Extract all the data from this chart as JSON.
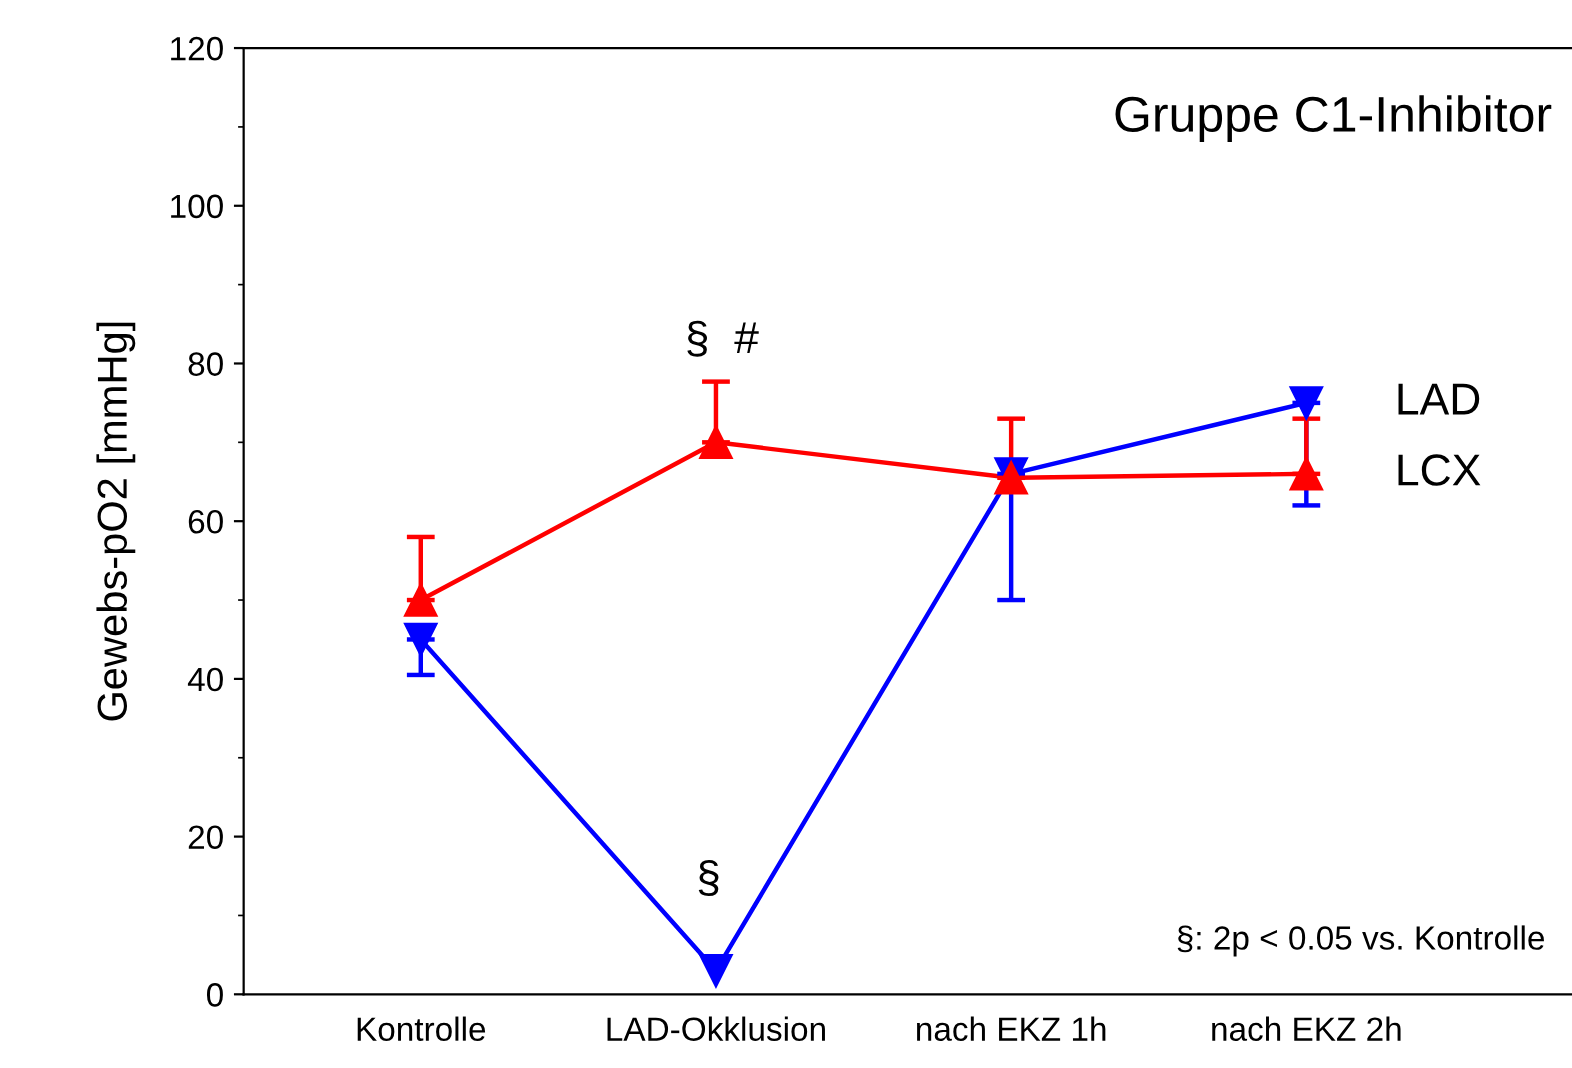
{
  "chart_data": {
    "type": "line",
    "title": "Gruppe C1-Inhibitor",
    "ylabel": "Gewebs-pO2 [mmHg]",
    "categories": [
      "Kontrolle",
      "LAD-Okklusion",
      "nach EKZ 1h",
      "nach EKZ 2h"
    ],
    "ylim": [
      0,
      120
    ],
    "yticks": [
      0,
      20,
      40,
      60,
      80,
      100,
      120
    ],
    "grid": false,
    "legend": "right",
    "series": [
      {
        "name": "LAD",
        "color": "#0000ff",
        "marker": "triangle_down",
        "values": [
          45,
          3,
          66,
          75
        ],
        "errors": [
          [
            40.5,
            45
          ],
          null,
          [
            50,
            66
          ],
          [
            62,
            75
          ]
        ]
      },
      {
        "name": "LCX",
        "color": "#ff0000",
        "marker": "triangle",
        "values": [
          50,
          70,
          65.5,
          66
        ],
        "errors": [
          [
            50,
            58
          ],
          [
            70,
            77.7
          ],
          [
            65.5,
            73
          ],
          [
            66,
            73
          ]
        ]
      }
    ],
    "annotations": [
      "§  #",
      "§",
      "§: 2p < 0.05 vs. Kontrolle"
    ]
  }
}
